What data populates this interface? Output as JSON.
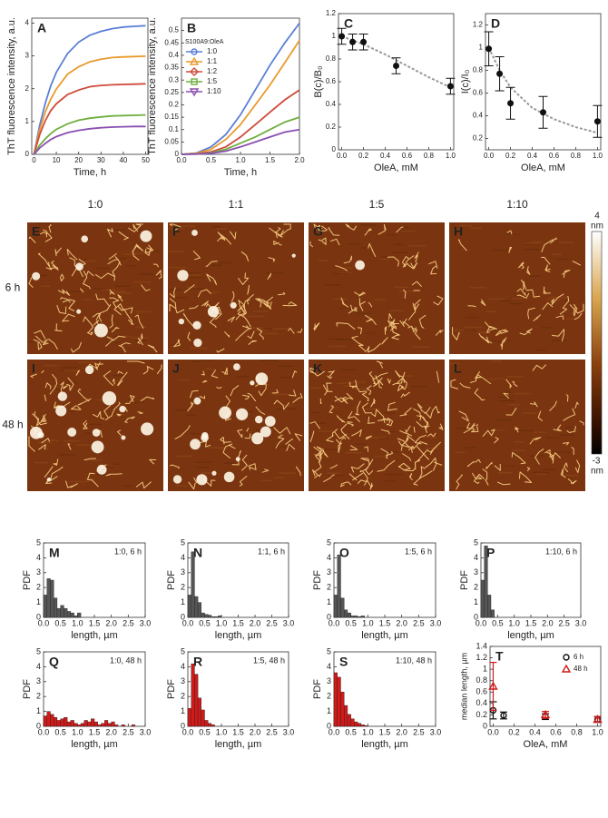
{
  "chart_data": [
    {
      "type": "line",
      "panel": "A",
      "xlabel": "Time, h",
      "ylabel": "ThT fluorescence intensity, a.u.",
      "x": [
        0,
        2.5,
        5,
        7.5,
        10,
        15,
        20,
        25,
        30,
        35,
        40,
        45,
        50
      ],
      "series": [
        {
          "color": "#5b7fd6",
          "values": [
            0,
            0.87,
            1.55,
            2.09,
            2.5,
            3.07,
            3.42,
            3.63,
            3.75,
            3.83,
            3.88,
            3.9,
            3.92
          ]
        },
        {
          "color": "#e89a2c",
          "values": [
            0,
            0.73,
            1.28,
            1.68,
            1.99,
            2.44,
            2.67,
            2.82,
            2.9,
            2.95,
            2.97,
            2.98,
            2.99
          ]
        },
        {
          "color": "#cf4a3a",
          "values": [
            0,
            0.59,
            1.02,
            1.33,
            1.54,
            1.82,
            1.96,
            2.06,
            2.1,
            2.12,
            2.13,
            2.14,
            2.15
          ]
        },
        {
          "color": "#6fae3f",
          "values": [
            0,
            0.27,
            0.47,
            0.63,
            0.76,
            0.93,
            1.04,
            1.1,
            1.14,
            1.17,
            1.18,
            1.19,
            1.2
          ]
        },
        {
          "color": "#8a4fb0",
          "values": [
            0,
            0.19,
            0.33,
            0.45,
            0.54,
            0.66,
            0.73,
            0.78,
            0.81,
            0.83,
            0.84,
            0.85,
            0.85
          ]
        }
      ],
      "xlim": [
        -1,
        51
      ],
      "ylim": [
        0,
        4.15
      ],
      "xticks": [
        0,
        10,
        20,
        30,
        40,
        50
      ],
      "yticks": [
        0,
        1,
        2,
        3,
        4
      ]
    },
    {
      "type": "line",
      "panel": "B",
      "xlabel": "Time, h",
      "ylabel": "ThT fluorescence intensity, a.u.",
      "legend_title": "S100A9:OleA",
      "x": [
        0,
        0.25,
        0.5,
        0.75,
        1,
        1.25,
        1.5,
        1.75,
        2
      ],
      "series": [
        {
          "name": "1:0",
          "marker": "circle",
          "color": "#5b7fd6",
          "values": [
            0,
            0.005,
            0.03,
            0.08,
            0.16,
            0.26,
            0.36,
            0.45,
            0.53
          ]
        },
        {
          "name": "1:1",
          "marker": "triangle",
          "color": "#e89a2c",
          "values": [
            0,
            0.004,
            0.02,
            0.06,
            0.12,
            0.2,
            0.28,
            0.37,
            0.46
          ]
        },
        {
          "name": "1:2",
          "marker": "diamond",
          "color": "#cf4a3a",
          "values": [
            0,
            0.002,
            0.01,
            0.03,
            0.07,
            0.12,
            0.17,
            0.22,
            0.26
          ]
        },
        {
          "name": "1:5",
          "marker": "square",
          "color": "#6fae3f",
          "values": [
            0,
            0.001,
            0.006,
            0.02,
            0.045,
            0.07,
            0.1,
            0.13,
            0.15
          ]
        },
        {
          "name": "1:10",
          "marker": "triangle-down",
          "color": "#8a4fb0",
          "values": [
            0,
            0.001,
            0.004,
            0.013,
            0.03,
            0.05,
            0.07,
            0.09,
            0.1
          ]
        }
      ],
      "xlim": [
        0,
        2
      ],
      "ylim": [
        0,
        0.55
      ],
      "xticks": [
        {
          "value": 0,
          "label": "0.0"
        },
        0.5,
        {
          "value": 1,
          "label": "1.0"
        },
        1.5,
        {
          "value": 2,
          "label": "2.0"
        }
      ],
      "yticks": [
        0,
        0.05,
        0.1,
        0.15,
        0.2,
        0.25,
        0.3,
        0.35,
        0.4,
        0.45,
        0.5
      ]
    },
    {
      "type": "errorbar",
      "panel": "C",
      "xlabel": "OleA, mM",
      "ylabel": "B(c)/B₀",
      "x": [
        0,
        0.1,
        0.2,
        0.5,
        1
      ],
      "values": [
        1.0,
        0.95,
        0.95,
        0.74,
        0.56
      ],
      "errors": [
        0.07,
        0.07,
        0.07,
        0.07,
        0.07
      ],
      "fit": {
        "x": [
          0,
          0.2,
          0.4,
          0.6,
          0.8,
          1
        ],
        "values": [
          1.0,
          0.93,
          0.84,
          0.74,
          0.64,
          0.55
        ]
      },
      "xlim": [
        -0.03,
        1.03
      ],
      "ylim": [
        0,
        1.2
      ],
      "xticks": [
        {
          "value": 0,
          "label": "0.0"
        },
        0.2,
        0.4,
        0.6,
        0.8,
        {
          "value": 1,
          "label": "1.0"
        }
      ],
      "yticks": [
        0,
        0.2,
        0.4,
        0.6,
        0.8,
        1,
        1.2
      ]
    },
    {
      "type": "errorbar",
      "panel": "D",
      "xlabel": "OleA, mM",
      "ylabel": "I(c)/I₀",
      "x": [
        0,
        0.1,
        0.2,
        0.5,
        1
      ],
      "values": [
        0.99,
        0.77,
        0.51,
        0.43,
        0.35
      ],
      "errors": [
        0.15,
        0.15,
        0.14,
        0.14,
        0.14
      ],
      "fit": {
        "x": [
          0,
          0.1,
          0.2,
          0.4,
          0.6,
          0.8,
          1
        ],
        "values": [
          1.0,
          0.8,
          0.65,
          0.47,
          0.37,
          0.3,
          0.25
        ]
      },
      "xlim": [
        -0.03,
        1.03
      ],
      "ylim": [
        0.1,
        1.3
      ],
      "xticks": [
        {
          "value": 0,
          "label": "0.0"
        },
        0.2,
        0.4,
        0.6,
        0.8,
        {
          "value": 1,
          "label": "1.0"
        }
      ],
      "yticks": [
        0.2,
        0.4,
        0.6,
        0.8,
        1,
        1.2
      ]
    },
    {
      "type": "histogram",
      "panel": "M",
      "annotation": "1:0, 6 h",
      "color": "#555555",
      "xlabel": "length, µm",
      "ylabel": "PDF",
      "bins": [
        0,
        0.1,
        0.2,
        0.3,
        0.4,
        0.5,
        0.6,
        0.7,
        0.8,
        0.9,
        1.0,
        1.1
      ],
      "counts": [
        1.5,
        2.6,
        2.5,
        1.3,
        0.6,
        0.8,
        0.6,
        0.4,
        0.3,
        0.1,
        0.3
      ],
      "xlim": [
        0,
        3
      ],
      "ylim": [
        0,
        5
      ],
      "xticks": [
        {
          "value": 0,
          "label": "0.0"
        },
        0.5,
        {
          "value": 1,
          "label": "1.0"
        },
        1.5,
        {
          "value": 2,
          "label": "2.0"
        },
        2.5,
        {
          "value": 3,
          "label": "3.0"
        }
      ],
      "yticks": [
        0,
        1,
        2,
        3,
        4,
        5
      ]
    },
    {
      "type": "histogram",
      "panel": "N",
      "annotation": "1:1, 6 h",
      "color": "#555555",
      "xlabel": "length, µm",
      "ylabel": "PDF",
      "bins": [
        0,
        0.1,
        0.2,
        0.3,
        0.4,
        0.5,
        0.6,
        0.7,
        0.8,
        0.9,
        1.0
      ],
      "counts": [
        1.5,
        4.4,
        1.4,
        1.0,
        0.3,
        0.2,
        0.15,
        0.05,
        0.05,
        0.1
      ],
      "xlim": [
        0,
        3
      ],
      "ylim": [
        0,
        5
      ],
      "xticks": [
        {
          "value": 0,
          "label": "0.0"
        },
        0.5,
        {
          "value": 1,
          "label": "1.0"
        },
        1.5,
        {
          "value": 2,
          "label": "2.0"
        },
        2.5,
        {
          "value": 3,
          "label": "3.0"
        }
      ],
      "yticks": [
        0,
        1,
        2,
        3,
        4,
        5
      ]
    },
    {
      "type": "histogram",
      "panel": "O",
      "annotation": "1:5, 6 h",
      "color": "#555555",
      "xlabel": "length, µm",
      "ylabel": "PDF",
      "bins": [
        0,
        0.1,
        0.2,
        0.3,
        0.4,
        0.5,
        0.6,
        0.7,
        0.8,
        0.9
      ],
      "counts": [
        1.5,
        4.2,
        1.3,
        0.5,
        0.3,
        0.1,
        0.1,
        0.05,
        0.1
      ],
      "xlim": [
        0,
        3
      ],
      "ylim": [
        0,
        5
      ],
      "xticks": [
        {
          "value": 0,
          "label": "0.0"
        },
        0.5,
        {
          "value": 1,
          "label": "1.0"
        },
        1.5,
        {
          "value": 2,
          "label": "2.0"
        },
        2.5,
        {
          "value": 3,
          "label": "3.0"
        }
      ],
      "yticks": [
        0,
        1,
        2,
        3,
        4,
        5
      ]
    },
    {
      "type": "histogram",
      "panel": "P",
      "annotation": "1:10, 6 h",
      "color": "#555555",
      "xlabel": "length, µm",
      "ylabel": "PDF",
      "bins": [
        0,
        0.1,
        0.2,
        0.3,
        0.4
      ],
      "counts": [
        2.5,
        4.8,
        1.5,
        0.5
      ],
      "xlim": [
        0,
        3
      ],
      "ylim": [
        0,
        5
      ],
      "xticks": [
        {
          "value": 0,
          "label": "0.0"
        },
        0.5,
        {
          "value": 1,
          "label": "1.0"
        },
        1.5,
        {
          "value": 2,
          "label": "2.0"
        },
        2.5,
        {
          "value": 3,
          "label": "3.0"
        }
      ],
      "yticks": [
        0,
        1,
        2,
        3,
        4,
        5
      ]
    },
    {
      "type": "histogram",
      "panel": "Q",
      "annotation": "1:0, 48 h",
      "color": "#d11a1a",
      "xlabel": "length, µm",
      "ylabel": "PDF",
      "bins": [
        0,
        0.1,
        0.2,
        0.3,
        0.4,
        0.5,
        0.6,
        0.7,
        0.8,
        0.9,
        1.0,
        1.1,
        1.2,
        1.3,
        1.4,
        1.5,
        1.6,
        1.7,
        1.8,
        1.9,
        2.0,
        2.1,
        2.2,
        2.3,
        2.4,
        2.5,
        2.6,
        2.7
      ],
      "counts": [
        0.7,
        1.0,
        0.8,
        0.6,
        0.4,
        0.5,
        0.6,
        0.3,
        0.4,
        0.2,
        0.1,
        0.2,
        0.4,
        0.3,
        0.5,
        0.3,
        0.1,
        0.2,
        0.4,
        0.2,
        0.3,
        0.1,
        0,
        0.1,
        0,
        0,
        0.1
      ],
      "xlim": [
        0,
        3
      ],
      "ylim": [
        0,
        5
      ],
      "xticks": [
        {
          "value": 0,
          "label": "0.0"
        },
        0.5,
        {
          "value": 1,
          "label": "1.0"
        },
        1.5,
        {
          "value": 2,
          "label": "2.0"
        },
        2.5,
        {
          "value": 3,
          "label": "3.0"
        }
      ],
      "yticks": [
        0,
        1,
        2,
        3,
        4,
        5
      ]
    },
    {
      "type": "histogram",
      "panel": "R",
      "annotation": "1:5, 48 h",
      "color": "#d11a1a",
      "xlabel": "length, µm",
      "ylabel": "PDF",
      "bins": [
        0,
        0.1,
        0.2,
        0.3,
        0.4,
        0.5,
        0.6,
        0.7,
        0.8
      ],
      "counts": [
        1.2,
        4.2,
        3.5,
        1.9,
        1.1,
        0.4,
        0.2,
        0.1
      ],
      "xlim": [
        0,
        3
      ],
      "ylim": [
        0,
        5
      ],
      "xticks": [
        {
          "value": 0,
          "label": "0.0"
        },
        0.5,
        {
          "value": 1,
          "label": "1.0"
        },
        1.5,
        {
          "value": 2,
          "label": "2.0"
        },
        2.5,
        {
          "value": 3,
          "label": "3.0"
        }
      ],
      "yticks": [
        0,
        1,
        2,
        3,
        4,
        5
      ]
    },
    {
      "type": "histogram",
      "panel": "S",
      "annotation": "1:10, 48 h",
      "color": "#d11a1a",
      "xlabel": "length, µm",
      "ylabel": "PDF",
      "bins": [
        0,
        0.1,
        0.2,
        0.3,
        0.4,
        0.5,
        0.6,
        0.7,
        0.8,
        0.9,
        1.0
      ],
      "counts": [
        3.6,
        3.3,
        2.3,
        1.4,
        0.8,
        0.5,
        0.3,
        0.2,
        0.1,
        0.05
      ],
      "xlim": [
        0,
        3
      ],
      "ylim": [
        0,
        5
      ],
      "xticks": [
        {
          "value": 0,
          "label": "0.0"
        },
        0.5,
        {
          "value": 1,
          "label": "1.0"
        },
        1.5,
        {
          "value": 2,
          "label": "2.0"
        },
        2.5,
        {
          "value": 3,
          "label": "3.0"
        }
      ],
      "yticks": [
        0,
        1,
        2,
        3,
        4,
        5
      ]
    },
    {
      "type": "scatter",
      "panel": "T",
      "xlabel": "OleA, mM",
      "ylabel": "median length, µm",
      "series": [
        {
          "name": "6 h",
          "marker": "circle",
          "color": "#111111",
          "x": [
            0,
            0.1,
            0.5,
            1
          ],
          "values": [
            0.28,
            0.19,
            0.17,
            0.12
          ],
          "errors": [
            0.15,
            0.06,
            0.05,
            0.05
          ]
        },
        {
          "name": "48 h",
          "marker": "triangle",
          "color": "#d11a1a",
          "x": [
            0,
            0.5,
            1
          ],
          "values": [
            0.7,
            0.2,
            0.12
          ],
          "errors": [
            0.42,
            0.06,
            0.05
          ]
        }
      ],
      "xlim": [
        -0.03,
        1.03
      ],
      "ylim": [
        0,
        1.4
      ],
      "xticks": [
        {
          "value": 0,
          "label": "0.0"
        },
        0.2,
        0.4,
        0.6,
        0.8,
        {
          "value": 1,
          "label": "1.0"
        }
      ],
      "yticks": [
        0,
        0.2,
        0.4,
        0.6,
        0.8,
        1,
        1.2,
        1.4
      ]
    }
  ],
  "afm": {
    "column_labels": [
      "1:0",
      "1:1",
      "1:5",
      "1:10"
    ],
    "row_labels": [
      "6 h",
      "48 h"
    ],
    "panels": [
      [
        "E",
        "F",
        "G",
        "H"
      ],
      [
        "I",
        "J",
        "K",
        "L"
      ]
    ],
    "colorbar": {
      "range": [
        -3,
        4
      ],
      "unit": "nm"
    }
  }
}
